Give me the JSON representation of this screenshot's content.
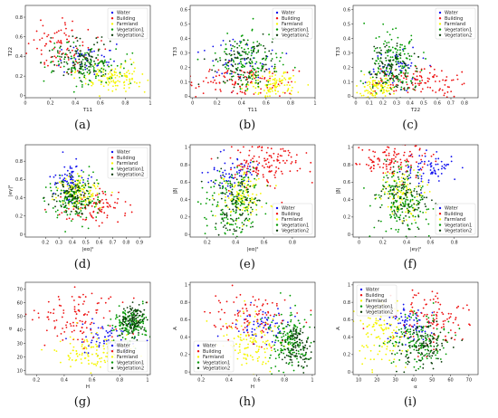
{
  "figure": {
    "colors": {
      "Water": "#1010ee",
      "Building": "#ee1010",
      "Farmland": "#f5f500",
      "Vegetation1": "#009a00",
      "Vegetation2": "#0b3d0b"
    },
    "legend_entries": [
      "Water",
      "Building",
      "Farmland",
      "Vegetation1",
      "Vegetation2"
    ]
  },
  "chart_data": [
    {
      "panel": "(a)",
      "type": "scatter",
      "xlabel": "T11",
      "ylabel": "T22",
      "xlim": [
        0.0,
        1.0
      ],
      "ylim": [
        -0.02,
        0.92
      ],
      "xticks": [
        0.0,
        0.2,
        0.4,
        0.6,
        0.8,
        1.0
      ],
      "yticks": [
        0.0,
        0.2,
        0.4,
        0.6,
        0.8
      ],
      "legend": "top-right",
      "series": [
        {
          "name": "Water",
          "center": [
            0.5,
            0.38
          ],
          "spread": [
            0.13,
            0.07
          ],
          "n": 40
        },
        {
          "name": "Building",
          "center": [
            0.3,
            0.5
          ],
          "spread": [
            0.15,
            0.12
          ],
          "n": 90
        },
        {
          "name": "Farmland",
          "center": [
            0.7,
            0.18
          ],
          "spread": [
            0.12,
            0.07
          ],
          "n": 120
        },
        {
          "name": "Vegetation1",
          "center": [
            0.5,
            0.32
          ],
          "spread": [
            0.16,
            0.1
          ],
          "n": 130
        },
        {
          "name": "Vegetation2",
          "center": [
            0.45,
            0.38
          ],
          "spread": [
            0.13,
            0.09
          ],
          "n": 90
        }
      ]
    },
    {
      "panel": "(b)",
      "type": "scatter",
      "xlabel": "T11",
      "ylabel": "T33",
      "xlim": [
        -0.02,
        1.0
      ],
      "ylim": [
        -0.01,
        0.63
      ],
      "xticks": [
        0.0,
        0.2,
        0.4,
        0.6,
        0.8,
        1.0
      ],
      "yticks": [
        0.0,
        0.1,
        0.2,
        0.3,
        0.4,
        0.5,
        0.6
      ],
      "legend": "top-right",
      "series": [
        {
          "name": "Water",
          "center": [
            0.4,
            0.22
          ],
          "spread": [
            0.14,
            0.08
          ],
          "n": 50
        },
        {
          "name": "Building",
          "center": [
            0.4,
            0.1
          ],
          "spread": [
            0.2,
            0.06
          ],
          "n": 110
        },
        {
          "name": "Farmland",
          "center": [
            0.68,
            0.08
          ],
          "spread": [
            0.12,
            0.05
          ],
          "n": 110
        },
        {
          "name": "Vegetation1",
          "center": [
            0.45,
            0.25
          ],
          "spread": [
            0.13,
            0.1
          ],
          "n": 150
        },
        {
          "name": "Vegetation2",
          "center": [
            0.42,
            0.22
          ],
          "spread": [
            0.12,
            0.09
          ],
          "n": 90
        }
      ]
    },
    {
      "panel": "(c)",
      "type": "scatter",
      "xlabel": "T22",
      "ylabel": "T33",
      "xlim": [
        -0.02,
        0.9
      ],
      "ylim": [
        -0.01,
        0.63
      ],
      "xticks": [
        0.0,
        0.1,
        0.2,
        0.3,
        0.4,
        0.5,
        0.6,
        0.7,
        0.8
      ],
      "yticks": [
        0.0,
        0.1,
        0.2,
        0.3,
        0.4,
        0.5,
        0.6
      ],
      "legend": "top-right",
      "series": [
        {
          "name": "Water",
          "center": [
            0.3,
            0.18
          ],
          "spread": [
            0.1,
            0.08
          ],
          "n": 50
        },
        {
          "name": "Building",
          "center": [
            0.45,
            0.1
          ],
          "spread": [
            0.18,
            0.06
          ],
          "n": 110
        },
        {
          "name": "Farmland",
          "center": [
            0.15,
            0.06
          ],
          "spread": [
            0.07,
            0.04
          ],
          "n": 100
        },
        {
          "name": "Vegetation1",
          "center": [
            0.28,
            0.24
          ],
          "spread": [
            0.1,
            0.11
          ],
          "n": 160
        },
        {
          "name": "Vegetation2",
          "center": [
            0.26,
            0.2
          ],
          "spread": [
            0.09,
            0.09
          ],
          "n": 90
        }
      ]
    },
    {
      "panel": "(d)",
      "type": "scatter",
      "xlabel": "|eα|²",
      "ylabel": "|eγ|²",
      "xlim": [
        0.05,
        0.98
      ],
      "ylim": [
        -0.03,
        0.98
      ],
      "xticks": [
        0.2,
        0.3,
        0.4,
        0.5,
        0.6,
        0.7,
        0.8,
        0.9
      ],
      "yticks": [
        0.0,
        0.2,
        0.4,
        0.6,
        0.8
      ],
      "legend": "top-right",
      "series": [
        {
          "name": "Water",
          "center": [
            0.38,
            0.6
          ],
          "spread": [
            0.06,
            0.1
          ],
          "n": 70
        },
        {
          "name": "Building",
          "center": [
            0.55,
            0.3
          ],
          "spread": [
            0.12,
            0.1
          ],
          "n": 90
        },
        {
          "name": "Farmland",
          "center": [
            0.45,
            0.45
          ],
          "spread": [
            0.08,
            0.08
          ],
          "n": 120
        },
        {
          "name": "Vegetation1",
          "center": [
            0.42,
            0.4
          ],
          "spread": [
            0.1,
            0.12
          ],
          "n": 140
        },
        {
          "name": "Vegetation2",
          "center": [
            0.4,
            0.42
          ],
          "spread": [
            0.08,
            0.1
          ],
          "n": 90
        }
      ]
    },
    {
      "panel": "(e)",
      "type": "scatter",
      "xlabel": "|eα|²",
      "ylabel": "|β|",
      "xlim": [
        0.08,
        0.96
      ],
      "ylim": [
        -0.03,
        1.03
      ],
      "xticks": [
        0.2,
        0.4,
        0.6,
        0.8
      ],
      "yticks": [
        0.0,
        0.2,
        0.4,
        0.6,
        0.8,
        1.0
      ],
      "legend": "bottom-right",
      "series": [
        {
          "name": "Water",
          "center": [
            0.38,
            0.72
          ],
          "spread": [
            0.08,
            0.12
          ],
          "n": 70
        },
        {
          "name": "Building",
          "center": [
            0.62,
            0.82
          ],
          "spread": [
            0.15,
            0.12
          ],
          "n": 130
        },
        {
          "name": "Farmland",
          "center": [
            0.45,
            0.45
          ],
          "spread": [
            0.08,
            0.14
          ],
          "n": 110
        },
        {
          "name": "Vegetation1",
          "center": [
            0.38,
            0.35
          ],
          "spread": [
            0.1,
            0.2
          ],
          "n": 160
        },
        {
          "name": "Vegetation2",
          "center": [
            0.4,
            0.38
          ],
          "spread": [
            0.08,
            0.18
          ],
          "n": 90
        }
      ]
    },
    {
      "panel": "(f)",
      "type": "scatter",
      "xlabel": "|eγ|²",
      "ylabel": "|β|",
      "xlim": [
        -0.05,
        1.0
      ],
      "ylim": [
        -0.03,
        1.03
      ],
      "xticks": [
        0.0,
        0.2,
        0.4,
        0.6,
        0.8
      ],
      "yticks": [
        0.0,
        0.2,
        0.4,
        0.6,
        0.8,
        1.0
      ],
      "legend": "bottom-right",
      "series": [
        {
          "name": "Water",
          "center": [
            0.58,
            0.78
          ],
          "spread": [
            0.1,
            0.1
          ],
          "n": 70
        },
        {
          "name": "Building",
          "center": [
            0.3,
            0.85
          ],
          "spread": [
            0.14,
            0.1
          ],
          "n": 120
        },
        {
          "name": "Farmland",
          "center": [
            0.38,
            0.45
          ],
          "spread": [
            0.1,
            0.14
          ],
          "n": 100
        },
        {
          "name": "Vegetation1",
          "center": [
            0.38,
            0.38
          ],
          "spread": [
            0.12,
            0.2
          ],
          "n": 170
        },
        {
          "name": "Vegetation2",
          "center": [
            0.38,
            0.4
          ],
          "spread": [
            0.1,
            0.18
          ],
          "n": 90
        }
      ]
    },
    {
      "panel": "(g)",
      "type": "scatter",
      "xlabel": "H",
      "ylabel": "α",
      "xlim": [
        0.12,
        1.02
      ],
      "ylim": [
        7,
        75
      ],
      "xticks": [
        0.2,
        0.4,
        0.6,
        0.8,
        1.0
      ],
      "yticks": [
        10,
        20,
        30,
        40,
        50,
        60,
        70
      ],
      "legend": "bottom-right",
      "series": [
        {
          "name": "Water",
          "center": [
            0.7,
            35
          ],
          "spread": [
            0.1,
            6
          ],
          "n": 60
        },
        {
          "name": "Building",
          "center": [
            0.5,
            50
          ],
          "spread": [
            0.17,
            10
          ],
          "n": 110
        },
        {
          "name": "Farmland",
          "center": [
            0.6,
            24
          ],
          "spread": [
            0.14,
            6
          ],
          "n": 110
        },
        {
          "name": "Vegetation1",
          "center": [
            0.88,
            44
          ],
          "spread": [
            0.06,
            6
          ],
          "n": 150
        },
        {
          "name": "Vegetation2",
          "center": [
            0.9,
            48
          ],
          "spread": [
            0.05,
            5
          ],
          "n": 110
        }
      ]
    },
    {
      "panel": "(h)",
      "type": "scatter",
      "xlabel": "H",
      "ylabel": "A",
      "xlim": [
        0.12,
        1.02
      ],
      "ylim": [
        -0.03,
        1.03
      ],
      "xticks": [
        0.2,
        0.4,
        0.6,
        0.8,
        1.0
      ],
      "yticks": [
        0.0,
        0.2,
        0.4,
        0.6,
        0.8,
        1.0
      ],
      "legend": "bottom-left",
      "series": [
        {
          "name": "Water",
          "center": [
            0.65,
            0.55
          ],
          "spread": [
            0.12,
            0.1
          ],
          "n": 70
        },
        {
          "name": "Building",
          "center": [
            0.55,
            0.65
          ],
          "spread": [
            0.15,
            0.15
          ],
          "n": 100
        },
        {
          "name": "Farmland",
          "center": [
            0.55,
            0.32
          ],
          "spread": [
            0.12,
            0.15
          ],
          "n": 120
        },
        {
          "name": "Vegetation1",
          "center": [
            0.83,
            0.35
          ],
          "spread": [
            0.08,
            0.16
          ],
          "n": 150
        },
        {
          "name": "Vegetation2",
          "center": [
            0.88,
            0.3
          ],
          "spread": [
            0.06,
            0.14
          ],
          "n": 110
        }
      ]
    },
    {
      "panel": "(i)",
      "type": "scatter",
      "xlabel": "α",
      "ylabel": "A",
      "xlim": [
        7,
        75
      ],
      "ylim": [
        -0.03,
        1.03
      ],
      "xticks": [
        10,
        20,
        30,
        40,
        50,
        60,
        70
      ],
      "yticks": [
        0.0,
        0.2,
        0.4,
        0.6,
        0.8,
        1.0
      ],
      "legend": "top-left",
      "series": [
        {
          "name": "Water",
          "center": [
            38,
            0.55
          ],
          "spread": [
            7,
            0.1
          ],
          "n": 70
        },
        {
          "name": "Building",
          "center": [
            50,
            0.6
          ],
          "spread": [
            10,
            0.15
          ],
          "n": 110
        },
        {
          "name": "Farmland",
          "center": [
            22,
            0.45
          ],
          "spread": [
            7,
            0.18
          ],
          "n": 120
        },
        {
          "name": "Vegetation1",
          "center": [
            42,
            0.35
          ],
          "spread": [
            8,
            0.16
          ],
          "n": 150
        },
        {
          "name": "Vegetation2",
          "center": [
            45,
            0.32
          ],
          "spread": [
            7,
            0.14
          ],
          "n": 110
        }
      ]
    }
  ]
}
